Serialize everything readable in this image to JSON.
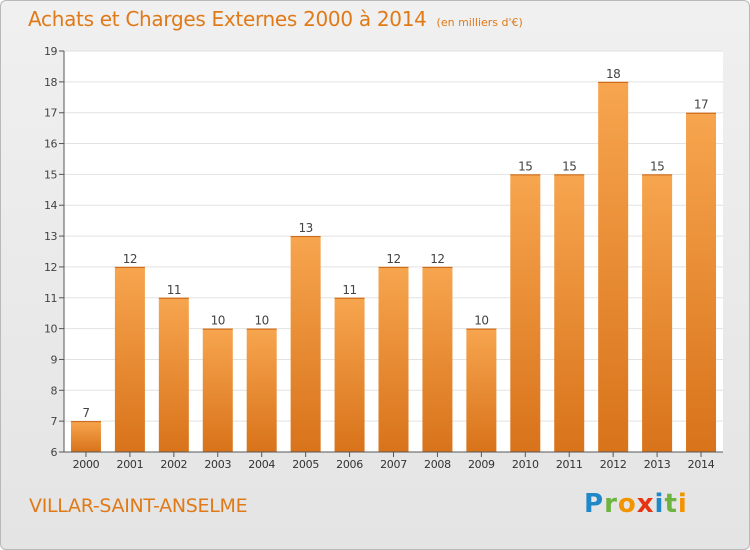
{
  "title": "Achats et Charges Externes 2000 à 2014",
  "unit": "(en milliers d'€)",
  "commune": "VILLAR-SAINT-ANSELME",
  "logo": {
    "letters": [
      "P",
      "r",
      "o",
      "x",
      "i",
      "t",
      "i"
    ],
    "colors": [
      "#1e88c8",
      "#6cb33f",
      "#f29400",
      "#e63312",
      "#1e88c8",
      "#6cb33f",
      "#f29400"
    ]
  },
  "colors": {
    "bar_light": "#f7a54f",
    "bar_dark": "#d8731a",
    "text_accent": "#e07a18"
  },
  "chart_data": {
    "type": "bar",
    "title": "Achats et Charges Externes 2000 à 2014",
    "subtitle": "(en milliers d'€)",
    "categories": [
      "2000",
      "2001",
      "2002",
      "2003",
      "2004",
      "2005",
      "2006",
      "2007",
      "2008",
      "2009",
      "2010",
      "2011",
      "2012",
      "2013",
      "2014"
    ],
    "values": [
      7,
      12,
      11,
      10,
      10,
      13,
      11,
      12,
      12,
      10,
      15,
      15,
      18,
      15,
      17
    ],
    "ylim": [
      6,
      19
    ],
    "yticks": [
      6,
      7,
      8,
      9,
      10,
      11,
      12,
      13,
      14,
      15,
      16,
      17,
      18,
      19
    ],
    "grid": true,
    "data_labels": true
  }
}
